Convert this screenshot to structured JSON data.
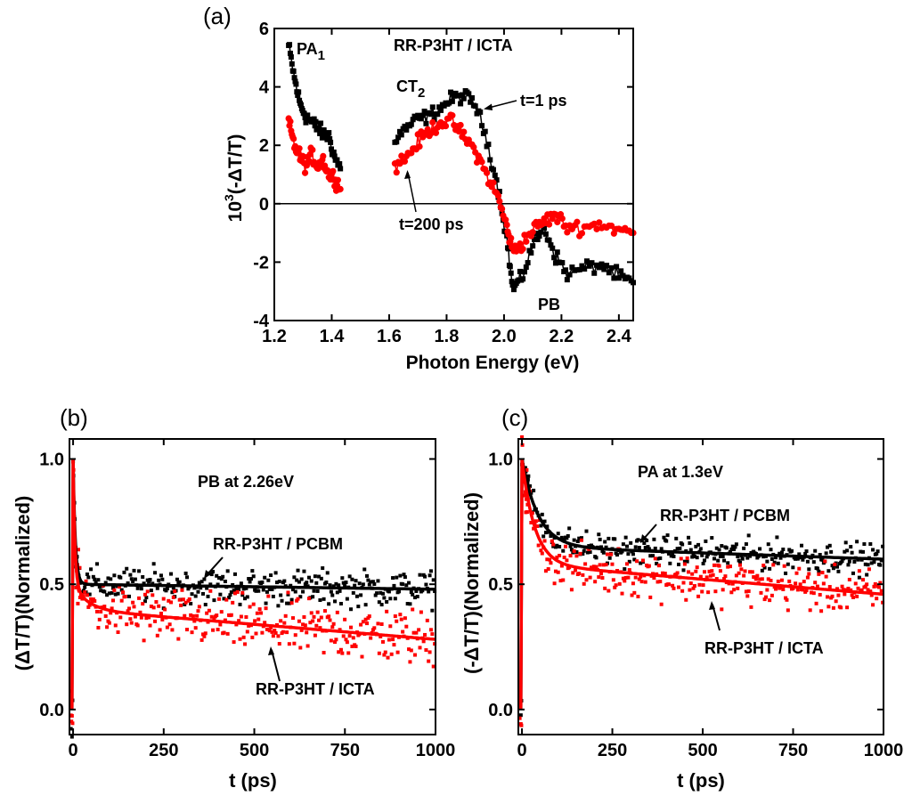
{
  "colors": {
    "black_series": "#000000",
    "red_series": "#ff0000"
  },
  "chart_data": [
    {
      "panel": "(a)",
      "type": "scatter",
      "title": "RR-P3HT / ICTA",
      "xlabel": "Photon Energy (eV)",
      "ylabel_base": "10",
      "ylabel_exp": "3",
      "ylabel_rest": "(-ΔT/T)",
      "xlim": [
        1.2,
        2.45
      ],
      "ylim": [
        -4,
        6
      ],
      "xticks": [
        1.2,
        1.4,
        1.6,
        1.8,
        2.0,
        2.2,
        2.4
      ],
      "xtick_labels": [
        "1.2",
        "1.4",
        "1.6",
        "1.8",
        "2.0",
        "2.2",
        "2.4"
      ],
      "yticks": [
        -4,
        -2,
        0,
        2,
        4,
        6
      ],
      "ytick_labels": [
        "-4",
        "-2",
        "0",
        "2",
        "4",
        "6"
      ],
      "zero_line": true,
      "series": [
        {
          "name": "t=1 ps",
          "color": "#000000",
          "marker": "square",
          "segments": [
            {
              "x": [
                1.25,
                1.27,
                1.29,
                1.31,
                1.33,
                1.35,
                1.37,
                1.39,
                1.41,
                1.43
              ],
              "y": [
                5.4,
                4.3,
                3.4,
                3.0,
                2.8,
                2.6,
                2.4,
                2.3,
                1.6,
                1.2
              ]
            },
            {
              "x": [
                1.62,
                1.66,
                1.7,
                1.74,
                1.78,
                1.82,
                1.86,
                1.9,
                1.94,
                1.98,
                2.01,
                2.03,
                2.06,
                2.1,
                2.14,
                2.18,
                2.22,
                2.28,
                2.34,
                2.4,
                2.45
              ],
              "y": [
                2.2,
                2.6,
                2.9,
                3.0,
                3.3,
                3.6,
                3.7,
                3.4,
                2.2,
                0.5,
                -1.2,
                -2.9,
                -2.6,
                -1.4,
                -0.8,
                -1.8,
                -2.4,
                -2.2,
                -2.1,
                -2.5,
                -2.7
              ]
            }
          ]
        },
        {
          "name": "t=200 ps",
          "color": "#ff0000",
          "marker": "circle",
          "segments": [
            {
              "x": [
                1.25,
                1.27,
                1.29,
                1.31,
                1.33,
                1.35,
                1.37,
                1.39,
                1.41,
                1.43
              ],
              "y": [
                2.8,
                2.0,
                1.6,
                1.3,
                1.7,
                1.3,
                1.5,
                1.0,
                0.9,
                0.5
              ]
            },
            {
              "x": [
                1.62,
                1.66,
                1.7,
                1.74,
                1.78,
                1.82,
                1.86,
                1.9,
                1.94,
                1.98,
                2.01,
                2.03,
                2.06,
                2.1,
                2.14,
                2.18,
                2.22,
                2.28,
                2.34,
                2.4,
                2.45
              ],
              "y": [
                1.3,
                1.6,
                2.1,
                2.5,
                2.8,
                2.8,
                2.3,
                1.8,
                1.0,
                0.2,
                -0.8,
                -1.6,
                -1.4,
                -0.9,
                -0.6,
                -0.4,
                -0.8,
                -0.8,
                -0.7,
                -0.9,
                -1.0
              ]
            }
          ]
        }
      ],
      "annotations": {
        "pa1_base": "PA",
        "pa1_sub": "1",
        "ct2_base": "CT",
        "ct2_sub": "2",
        "t1": "t=1 ps",
        "t200": "t=200 ps",
        "pb": "PB"
      }
    },
    {
      "panel": "(b)",
      "type": "scatter",
      "title": "PB at 2.26eV",
      "xlabel": "t (ps)",
      "ylabel": "(ΔT/T)(Normalized)",
      "xlim": [
        -10,
        1000
      ],
      "ylim": [
        -0.1,
        1.08
      ],
      "xticks": [
        0,
        250,
        500,
        750,
        1000
      ],
      "xtick_labels": [
        "0",
        "250",
        "500",
        "750",
        "1000"
      ],
      "yticks": [
        0.0,
        0.5,
        1.0
      ],
      "ytick_labels": [
        "0.0",
        "0.5",
        "1.0"
      ],
      "series": [
        {
          "name": "RR-P3HT / PCBM",
          "color": "#000000",
          "fit": {
            "plateau": 0.5,
            "slope": -2e-05,
            "fast_amp": 0.5,
            "fast_tau": 6,
            "slow_amp": 0,
            "slow_tau": 1
          },
          "noise": 0.035
        },
        {
          "name": "RR-P3HT / ICTA",
          "color": "#ff0000",
          "fit": {
            "plateau": 0.4,
            "slope": -0.00012,
            "fast_amp": 0.5,
            "fast_tau": 5,
            "slow_amp": 0.1,
            "slow_tau": 40
          },
          "noise": 0.055
        }
      ],
      "annotations": {
        "upper": "RR-P3HT / PCBM",
        "lower": "RR-P3HT / ICTA"
      }
    },
    {
      "panel": "(c)",
      "type": "scatter",
      "title": "PA at 1.3eV",
      "xlabel": "t (ps)",
      "ylabel": "(-ΔT/T)(Normalized)",
      "xlim": [
        -10,
        1000
      ],
      "ylim": [
        -0.1,
        1.08
      ],
      "xticks": [
        0,
        250,
        500,
        750,
        1000
      ],
      "xtick_labels": [
        "0",
        "250",
        "500",
        "750",
        "1000"
      ],
      "yticks": [
        0.0,
        0.5,
        1.0
      ],
      "ytick_labels": [
        "0.0",
        "0.5",
        "1.0"
      ],
      "series": [
        {
          "name": "RR-P3HT / PCBM",
          "color": "#000000",
          "fit": {
            "plateau": 0.65,
            "slope": -5e-05,
            "fast_amp": 0.35,
            "fast_tau": 45,
            "slow_amp": 0,
            "slow_tau": 1
          },
          "noise": 0.03
        },
        {
          "name": "RR-P3HT / ICTA",
          "color": "#ff0000",
          "fit": {
            "plateau": 0.58,
            "slope": -0.00012,
            "fast_amp": 0.42,
            "fast_tau": 35,
            "slow_amp": 0,
            "slow_tau": 1
          },
          "noise": 0.045
        }
      ],
      "annotations": {
        "upper": "RR-P3HT / PCBM",
        "lower": "RR-P3HT / ICTA"
      }
    }
  ]
}
